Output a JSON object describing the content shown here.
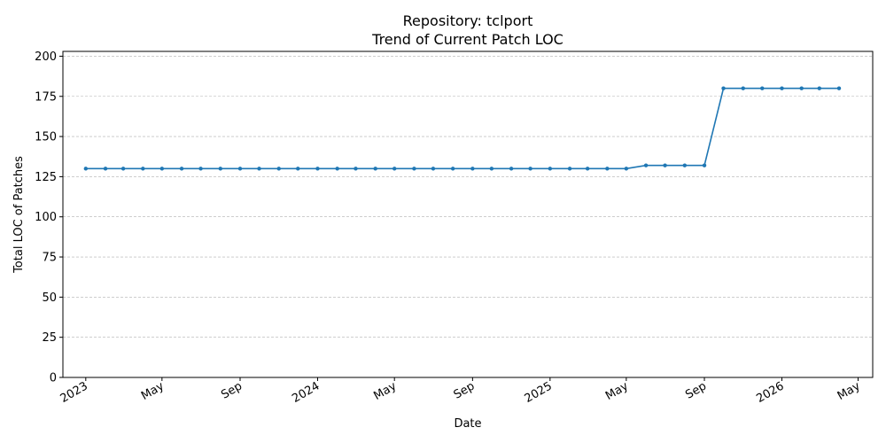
{
  "chart_data": {
    "type": "line",
    "title": "Repository: tclport",
    "subtitle": "Trend of Current Patch LOC",
    "xlabel": "Date",
    "ylabel": "Total LOC of Patches",
    "xlim": [
      "2022-11-26",
      "2026-05-24"
    ],
    "ylim": [
      0,
      203
    ],
    "grid": "horizontal dashed",
    "x_ticks": [
      {
        "date": "2023-01-01",
        "label": "2023"
      },
      {
        "date": "2023-05-01",
        "label": "May"
      },
      {
        "date": "2023-09-01",
        "label": "Sep"
      },
      {
        "date": "2024-01-01",
        "label": "2024"
      },
      {
        "date": "2024-05-01",
        "label": "May"
      },
      {
        "date": "2024-09-01",
        "label": "Sep"
      },
      {
        "date": "2025-01-01",
        "label": "2025"
      },
      {
        "date": "2025-05-01",
        "label": "May"
      },
      {
        "date": "2025-09-01",
        "label": "Sep"
      },
      {
        "date": "2026-01-01",
        "label": "2026"
      },
      {
        "date": "2026-05-01",
        "label": "May"
      }
    ],
    "y_ticks": [
      0,
      25,
      50,
      75,
      100,
      125,
      150,
      175,
      200
    ],
    "series": [
      {
        "color": "#1f77b4",
        "x": [
          "2023-01-01",
          "2023-02-01",
          "2023-03-01",
          "2023-04-01",
          "2023-05-01",
          "2023-06-01",
          "2023-07-01",
          "2023-08-01",
          "2023-09-01",
          "2023-10-01",
          "2023-11-01",
          "2023-12-01",
          "2024-01-01",
          "2024-02-01",
          "2024-03-01",
          "2024-04-01",
          "2024-05-01",
          "2024-06-01",
          "2024-07-01",
          "2024-08-01",
          "2024-09-01",
          "2024-10-01",
          "2024-11-01",
          "2024-12-01",
          "2025-01-01",
          "2025-02-01",
          "2025-03-01",
          "2025-04-01",
          "2025-05-01",
          "2025-06-01",
          "2025-07-01",
          "2025-08-01",
          "2025-09-01",
          "2025-10-01",
          "2025-11-01",
          "2025-12-01",
          "2026-01-01",
          "2026-02-01",
          "2026-03-01",
          "2026-04-01"
        ],
        "values": [
          130,
          130,
          130,
          130,
          130,
          130,
          130,
          130,
          130,
          130,
          130,
          130,
          130,
          130,
          130,
          130,
          130,
          130,
          130,
          130,
          130,
          130,
          130,
          130,
          130,
          130,
          130,
          130,
          130,
          132,
          132,
          132,
          132,
          180,
          180,
          180,
          180,
          180,
          180,
          180
        ]
      }
    ]
  }
}
